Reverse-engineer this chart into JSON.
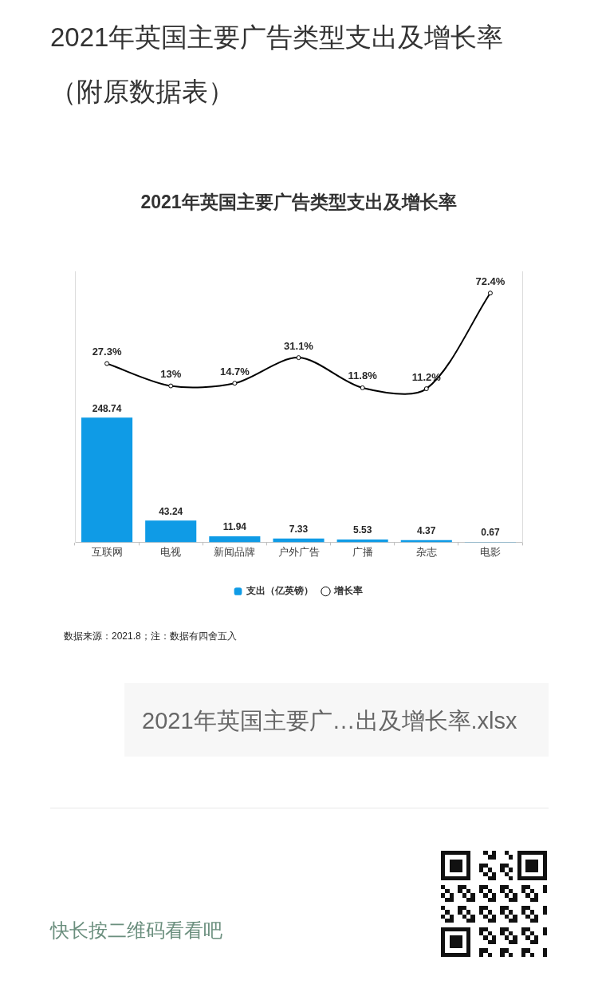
{
  "chart_data": {
    "type": "bar",
    "title": "2021年英国主要广告类型支出及增长率（附原数据表）",
    "subtitle": "2021年英国主要广告类型支出及增长率",
    "categories": [
      "互联网",
      "电视",
      "新闻品牌",
      "户外广告",
      "广播",
      "杂志",
      "电影"
    ],
    "series": [
      {
        "name": "支出（亿英镑）",
        "color": "#0f9be6",
        "values": [
          248.74,
          43.24,
          11.94,
          7.33,
          5.53,
          4.37,
          0.67
        ]
      },
      {
        "name": "增长率",
        "type": "line",
        "axis": "y2",
        "color": "#000000",
        "values": [
          27.3,
          13,
          14.7,
          31.1,
          11.8,
          11.2,
          72.4
        ],
        "value_labels": [
          "27.3%",
          "13%",
          "14.7%",
          "31.1%",
          "11.8%",
          "11.2%",
          "72.4%"
        ]
      }
    ],
    "ylim": [
      0,
      540
    ],
    "y2lim": [
      -87,
      86
    ],
    "data_labels": true,
    "legend": "bottom",
    "marker": "circle",
    "line_style": "solid",
    "grid": false,
    "tick_labels": "x",
    "annotations": [
      "数据来源：2021.8；注：数据有四舍五入",
      "2021年英国主要广…出及增长率.xlsx",
      "快长按二维码看看吧"
    ]
  }
}
